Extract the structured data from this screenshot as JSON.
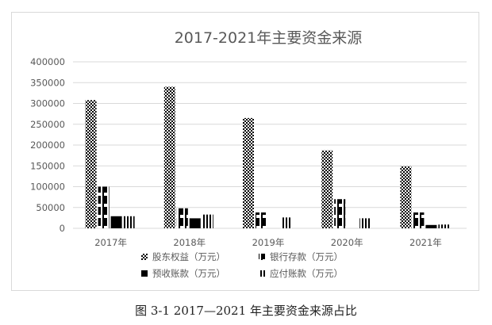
{
  "chart_data": {
    "type": "bar",
    "title": "2017-2021年主要资金来源",
    "categories": [
      "2017年",
      "2018年",
      "2019年",
      "2020年",
      "2021年"
    ],
    "series": [
      {
        "name": "股东权益（万元）",
        "pattern": "checker",
        "values": [
          308000,
          340000,
          265000,
          187000,
          149000
        ]
      },
      {
        "name": "银行存款（万元）",
        "pattern": "wave",
        "values": [
          100000,
          48000,
          38000,
          70000,
          38000
        ]
      },
      {
        "name": "预收账款（万元）",
        "pattern": "solid",
        "values": [
          29000,
          24000,
          0,
          0,
          8000
        ]
      },
      {
        "name": "应付账款（万元）",
        "pattern": "vlines",
        "values": [
          29000,
          33000,
          26000,
          24000,
          9000
        ]
      }
    ],
    "ylim": [
      0,
      400000
    ],
    "yticks": [
      "0",
      "50000",
      "100000",
      "150000",
      "200000",
      "250000",
      "300000",
      "350000",
      "400000"
    ],
    "grid": true,
    "legend_position": "bottom"
  },
  "caption": "图 3-1  2017—2021 年主要资金来源占比",
  "colors": {
    "bar": "#000000",
    "grid": "#d9d9d9",
    "text": "#595959"
  }
}
